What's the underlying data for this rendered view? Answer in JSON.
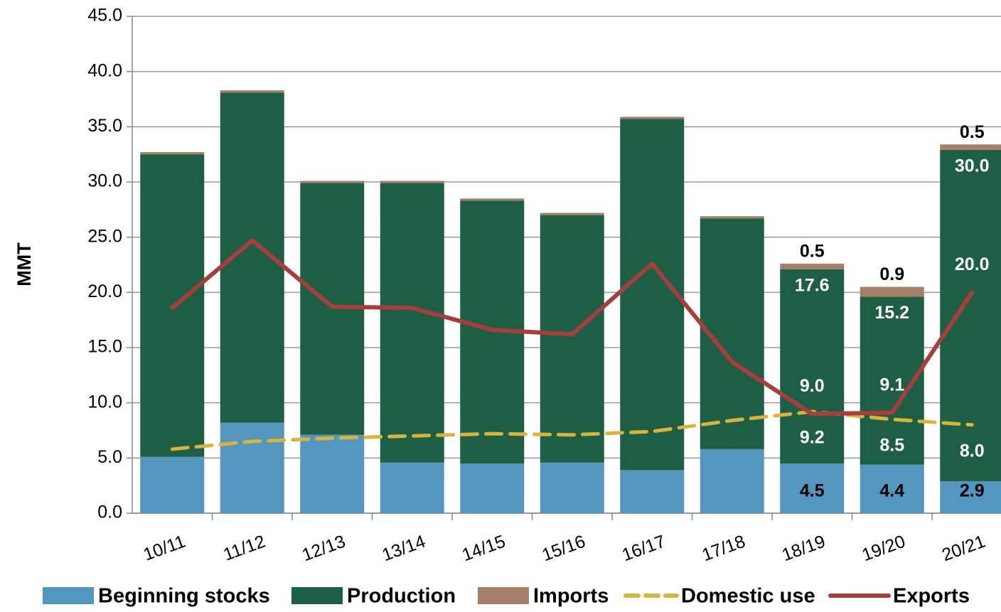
{
  "chart_data": {
    "type": "bar",
    "stacked": true,
    "y_label": "MMT",
    "categories": [
      "10/11",
      "11/12",
      "12/13",
      "13/14",
      "14/15",
      "15/16",
      "16/17",
      "17/18",
      "18/19",
      "19/20",
      "20/21"
    ],
    "ylim": [
      0,
      45
    ],
    "yticks": [
      {
        "value": 0,
        "label": "0.0"
      },
      {
        "value": 5,
        "label": "5.0"
      },
      {
        "value": 10,
        "label": "10.0"
      },
      {
        "value": 15,
        "label": "15.0"
      },
      {
        "value": 20,
        "label": "20.0"
      },
      {
        "value": 25,
        "label": "25.0"
      },
      {
        "value": 30,
        "label": "30.0"
      },
      {
        "value": 35,
        "label": "35.0"
      },
      {
        "value": 40,
        "label": "40.0"
      },
      {
        "value": 45,
        "label": "45.0"
      }
    ],
    "grid": true,
    "legend": "bottom",
    "series": [
      {
        "name": "Beginning stocks",
        "type": "bar",
        "color": "#5596be",
        "values": [
          5.1,
          8.2,
          7.1,
          4.6,
          4.5,
          4.6,
          3.9,
          5.8,
          4.5,
          4.4,
          2.9
        ],
        "value_labels": [
          null,
          null,
          null,
          null,
          null,
          null,
          null,
          null,
          "4.5",
          "4.4",
          "2.9"
        ]
      },
      {
        "name": "Production",
        "type": "bar",
        "color": "#1e5e45",
        "values": [
          27.4,
          29.9,
          22.8,
          25.3,
          23.8,
          22.4,
          31.8,
          20.9,
          17.6,
          15.2,
          30
        ],
        "value_labels": [
          null,
          null,
          null,
          null,
          null,
          null,
          null,
          null,
          "17.6",
          "15.2",
          "30.0"
        ]
      },
      {
        "name": "Imports",
        "type": "bar",
        "color": "#a57f6a",
        "values": [
          0.2,
          0.2,
          0.2,
          0.2,
          0.2,
          0.2,
          0.2,
          0.2,
          0.5,
          0.9,
          0.5
        ],
        "value_labels": [
          null,
          null,
          null,
          null,
          null,
          null,
          null,
          null,
          "0.5",
          "0.9",
          "0.5"
        ]
      },
      {
        "name": "Domestic use",
        "type": "line",
        "dashed": true,
        "color": "#d6b43e",
        "values": [
          5.8,
          6.5,
          6.8,
          7.0,
          7.2,
          7.1,
          7.4,
          8.4,
          9.2,
          8.5,
          8
        ],
        "value_labels": [
          null,
          null,
          null,
          null,
          null,
          null,
          null,
          null,
          "9.2",
          "8.5",
          "8.0"
        ]
      },
      {
        "name": "Exports",
        "type": "line",
        "color": "#a63e3e",
        "values": [
          18.6,
          24.7,
          18.7,
          18.6,
          16.6,
          16.2,
          22.6,
          13.7,
          9,
          9.1,
          20
        ],
        "value_labels": [
          null,
          null,
          null,
          null,
          null,
          null,
          null,
          null,
          "9.0",
          "9.1",
          "20.0"
        ]
      }
    ]
  }
}
